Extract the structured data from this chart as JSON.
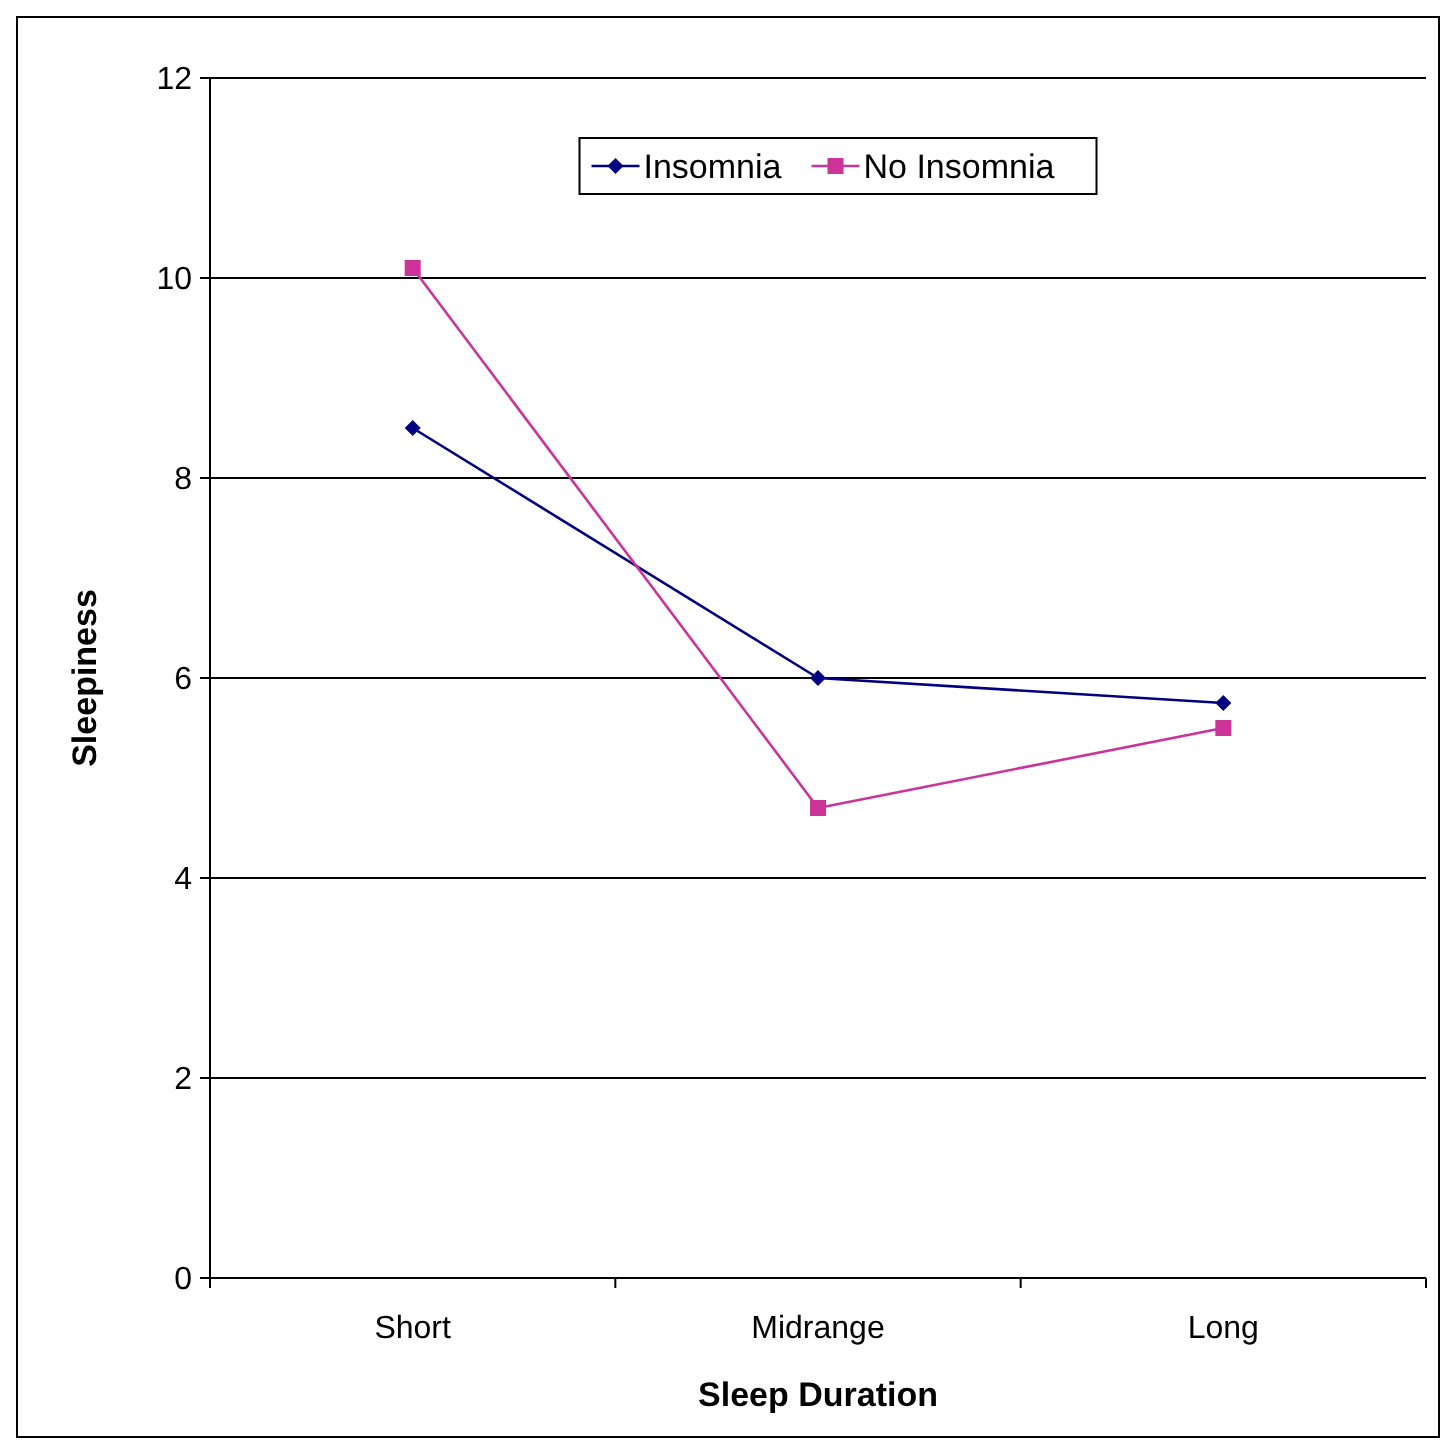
{
  "chart_data": {
    "type": "line",
    "xlabel": "Sleep Duration",
    "ylabel": "Sleepiness",
    "categories": [
      "Short",
      "Midrange",
      "Long"
    ],
    "series": [
      {
        "name": "Insomnia",
        "color": "#000080",
        "marker": "diamond",
        "values": [
          8.5,
          6.0,
          5.75
        ]
      },
      {
        "name": "No Insomnia",
        "color": "#cc3399",
        "marker": "square",
        "values": [
          10.1,
          4.7,
          5.5
        ]
      }
    ],
    "ylim": [
      0,
      12
    ],
    "yticks": [
      0,
      2,
      4,
      6,
      8,
      10,
      12
    ],
    "grid": "y",
    "legend": "top"
  }
}
